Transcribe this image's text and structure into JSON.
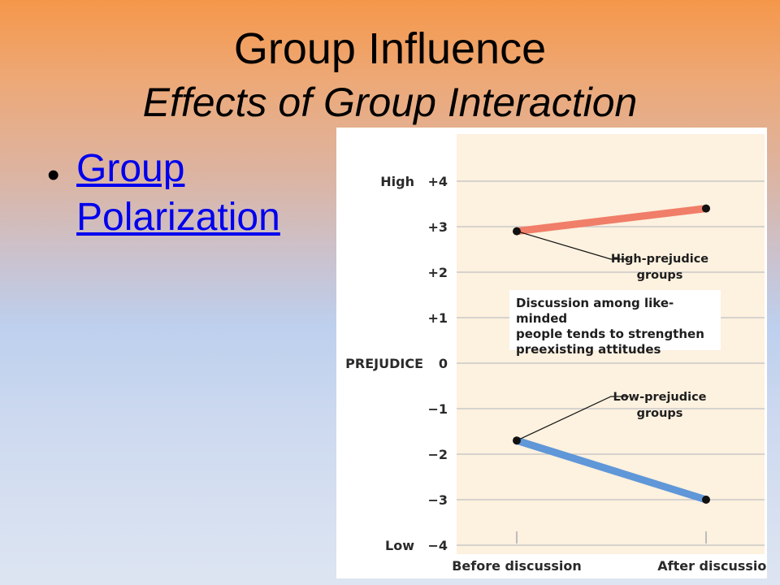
{
  "slide": {
    "title": "Group Influence",
    "subtitle": "Effects of Group Interaction",
    "bullet_symbol": "•",
    "bullet_link": "Group Polarization"
  },
  "chart_data": {
    "type": "line",
    "categories": [
      "Before discussion",
      "After discussion"
    ],
    "series": [
      {
        "name": "High-prejudice groups",
        "label_lines": [
          "High-prejudice",
          "groups"
        ],
        "values": [
          2.9,
          3.4
        ],
        "color": "#f07e68"
      },
      {
        "name": "Low-prejudice groups",
        "label_lines": [
          "Low-prejudice",
          "groups"
        ],
        "values": [
          -1.7,
          -3.0
        ],
        "color": "#5f97d8"
      }
    ],
    "ylabel": "PREJUDICE",
    "y_high_label": "High",
    "y_low_label": "Low",
    "ylim": [
      -4,
      4
    ],
    "yticks": [
      {
        "value": 4,
        "label": "+4"
      },
      {
        "value": 3,
        "label": "+3"
      },
      {
        "value": 2,
        "label": "+2"
      },
      {
        "value": 1,
        "label": "+1"
      },
      {
        "value": 0,
        "label": "0"
      },
      {
        "value": -1,
        "label": "−1"
      },
      {
        "value": -2,
        "label": "−2"
      },
      {
        "value": -3,
        "label": "−3"
      },
      {
        "value": -4,
        "label": "−4"
      }
    ],
    "annotation_lines": [
      "Discussion among like-minded",
      "people tends to strengthen",
      "preexisting attitudes"
    ],
    "grid": true,
    "plot_background": "#fdf1df",
    "grid_color": "#c9c9c9"
  }
}
